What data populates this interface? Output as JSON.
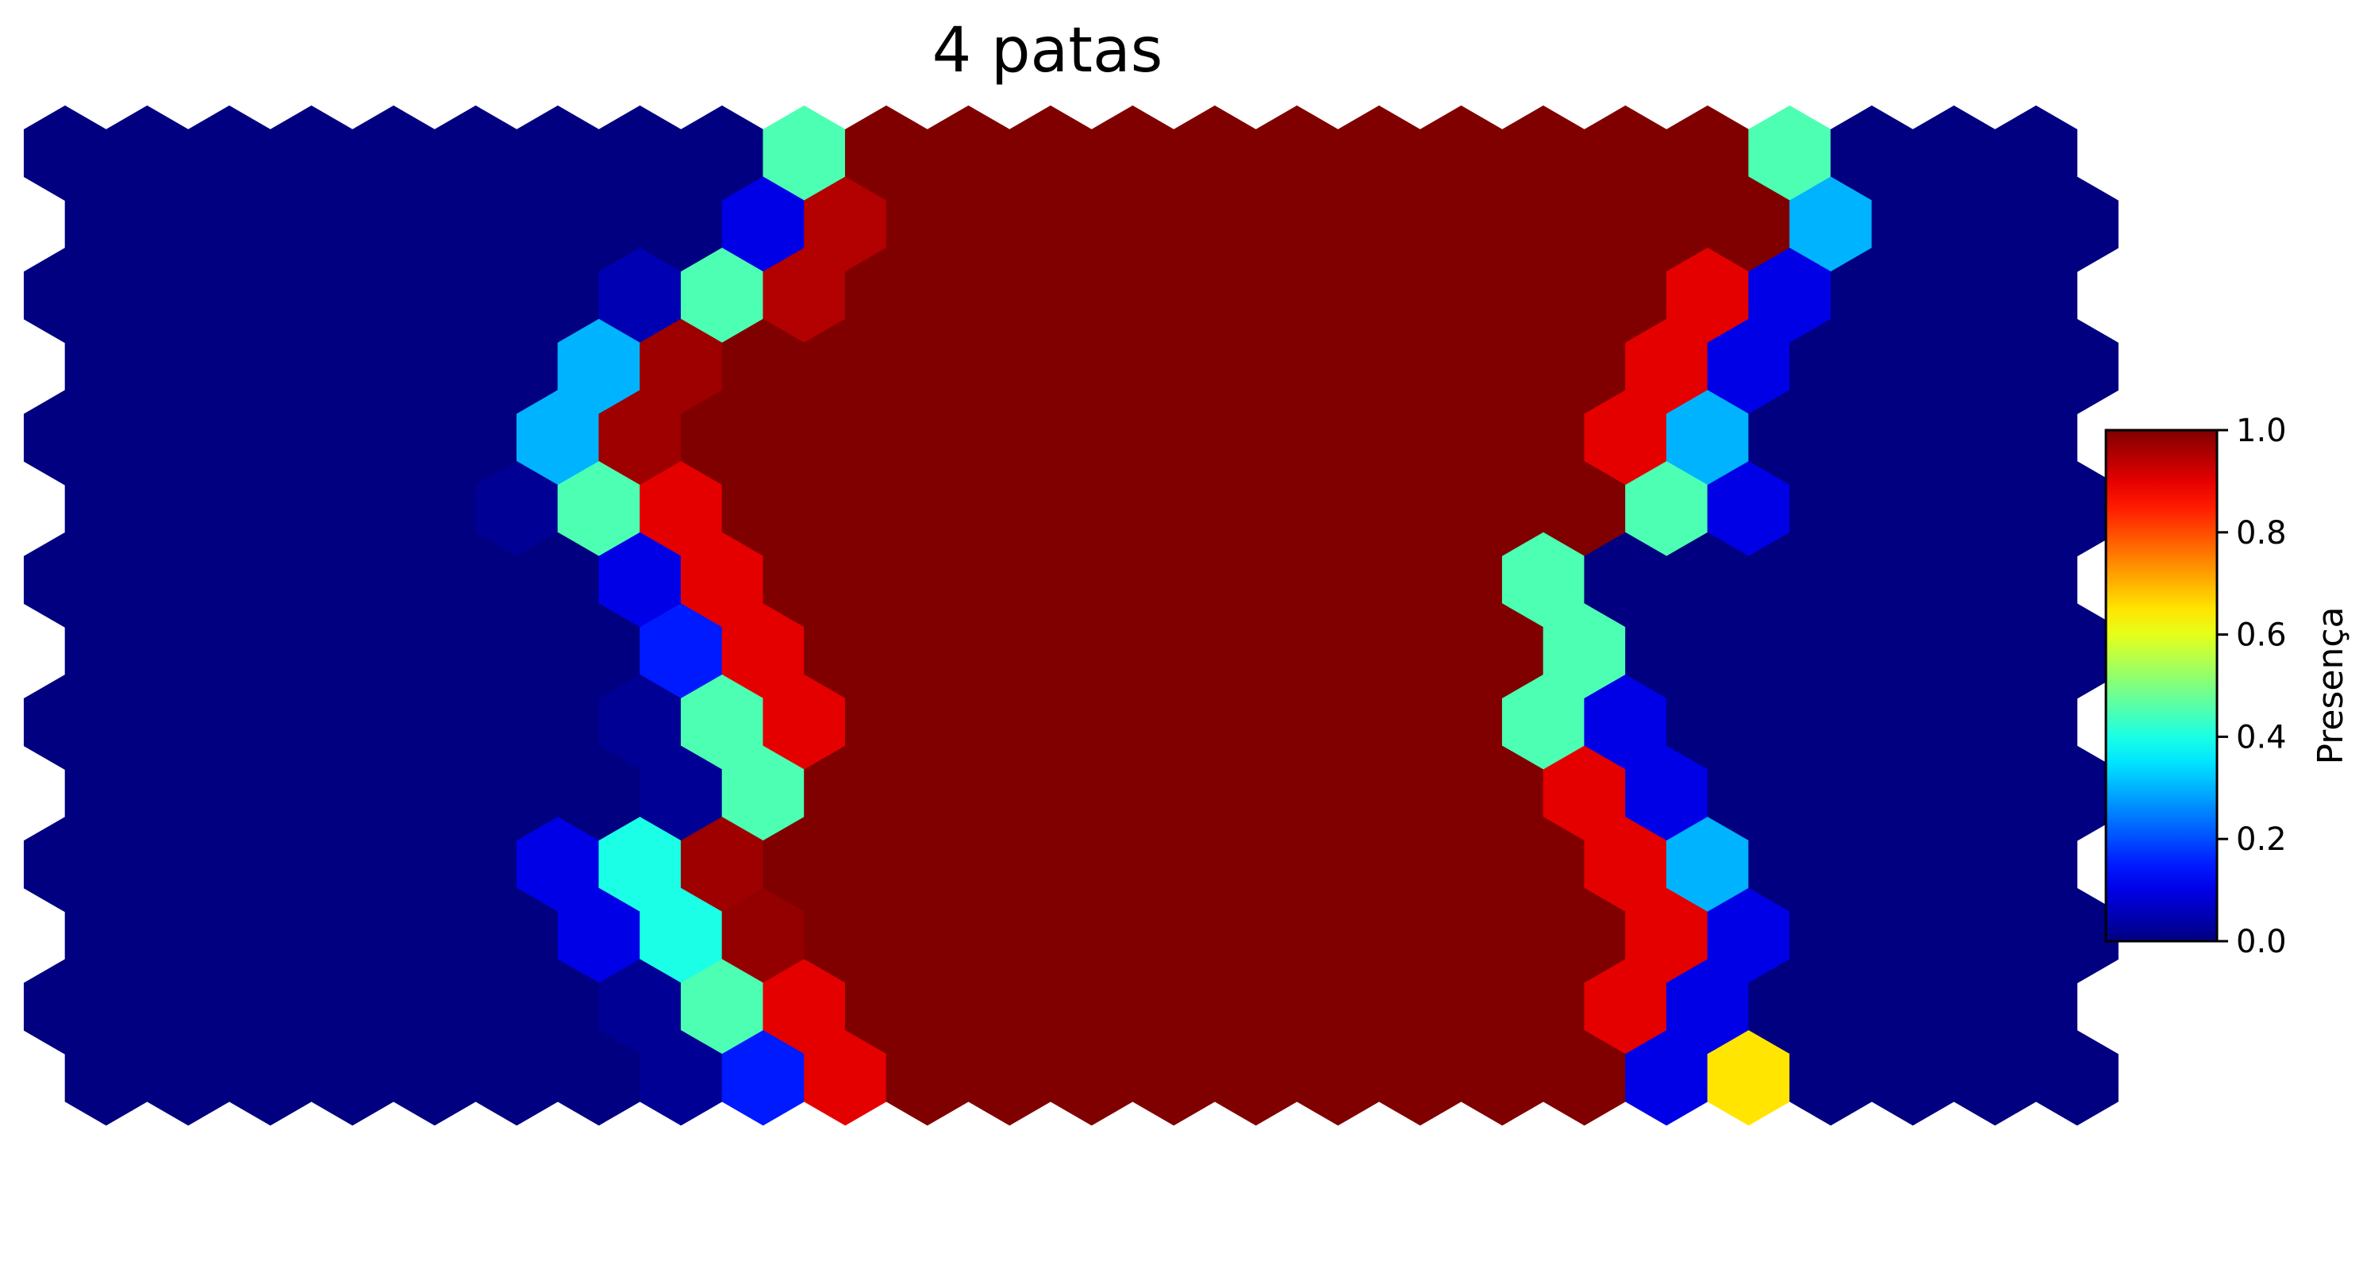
{
  "chart_data": {
    "type": "heatmap",
    "layout": "hexagonal",
    "title": "4 patas",
    "colormap": "jet",
    "colorbar": {
      "label": "Presença",
      "range": [
        0.0,
        1.0
      ],
      "ticks": [
        "0.0",
        "0.2",
        "0.4",
        "0.6",
        "0.8",
        "1.0"
      ],
      "placement": "right"
    },
    "grid": false,
    "rows": 14,
    "cols": 25,
    "values": [
      [
        0,
        0,
        0,
        0,
        0,
        0,
        0,
        0,
        0,
        0.45,
        1,
        1,
        1,
        1,
        1,
        1,
        1,
        1,
        1,
        1,
        1,
        0.45,
        0,
        0,
        0
      ],
      [
        0,
        0,
        0,
        0,
        0,
        0,
        0,
        0,
        0.1,
        0.95,
        1,
        1,
        1,
        1,
        1,
        1,
        1,
        1,
        1,
        1,
        1,
        0.3,
        0,
        0,
        0
      ],
      [
        0,
        0,
        0,
        0,
        0,
        0,
        0,
        0.05,
        0.45,
        0.95,
        1,
        1,
        1,
        1,
        1,
        1,
        1,
        1,
        1,
        1,
        0.9,
        0.1,
        0,
        0,
        0
      ],
      [
        0,
        0,
        0,
        0,
        0,
        0,
        0.3,
        0.97,
        1,
        1,
        1,
        1,
        1,
        1,
        1,
        1,
        1,
        1,
        1,
        0.9,
        0.1,
        0,
        0,
        0,
        0
      ],
      [
        0,
        0,
        0,
        0,
        0,
        0,
        0.3,
        0.97,
        1,
        1,
        1,
        1,
        1,
        1,
        1,
        1,
        1,
        1,
        1,
        0.9,
        0.3,
        0,
        0,
        0,
        0
      ],
      [
        0,
        0,
        0,
        0,
        0,
        0.02,
        0.45,
        0.9,
        1,
        1,
        1,
        1,
        1,
        1,
        1,
        1,
        1,
        1,
        1,
        0.45,
        0.1,
        0,
        0,
        0,
        0
      ],
      [
        0,
        0,
        0,
        0,
        0,
        0,
        0,
        0.1,
        0.9,
        1,
        1,
        1,
        1,
        1,
        1,
        1,
        1,
        1,
        0.45,
        0,
        0,
        0,
        0,
        0,
        0
      ],
      [
        0,
        0,
        0,
        0,
        0,
        0,
        0,
        0.15,
        0.9,
        1,
        1,
        1,
        1,
        1,
        1,
        1,
        1,
        1,
        0.45,
        0,
        0,
        0,
        0,
        0,
        0
      ],
      [
        0,
        0,
        0,
        0,
        0,
        0,
        0,
        0.02,
        0.45,
        0.9,
        1,
        1,
        1,
        1,
        1,
        1,
        1,
        1,
        0.45,
        0.1,
        0,
        0,
        0,
        0,
        0
      ],
      [
        0,
        0,
        0,
        0,
        0,
        0,
        0,
        0.02,
        0.45,
        1,
        1,
        1,
        1,
        1,
        1,
        1,
        1,
        1,
        0.9,
        0.1,
        0,
        0,
        0,
        0,
        0
      ],
      [
        0,
        0,
        0,
        0,
        0,
        0,
        0.1,
        0.4,
        0.97,
        1,
        1,
        1,
        1,
        1,
        1,
        1,
        1,
        1,
        1,
        0.9,
        0.3,
        0,
        0,
        0,
        0
      ],
      [
        0,
        0,
        0,
        0,
        0,
        0,
        0.1,
        0.4,
        0.98,
        1,
        1,
        1,
        1,
        1,
        1,
        1,
        1,
        1,
        1,
        0.9,
        0.1,
        0,
        0,
        0,
        0
      ],
      [
        0,
        0,
        0,
        0,
        0,
        0,
        0,
        0.02,
        0.45,
        0.9,
        1,
        1,
        1,
        1,
        1,
        1,
        1,
        1,
        1,
        0.9,
        0.1,
        0,
        0,
        0,
        0
      ],
      [
        0,
        0,
        0,
        0,
        0,
        0,
        0,
        0.02,
        0.15,
        0.9,
        1,
        1,
        1,
        1,
        1,
        1,
        1,
        1,
        1,
        0.1,
        0.65,
        0,
        0,
        0,
        0
      ]
    ]
  }
}
